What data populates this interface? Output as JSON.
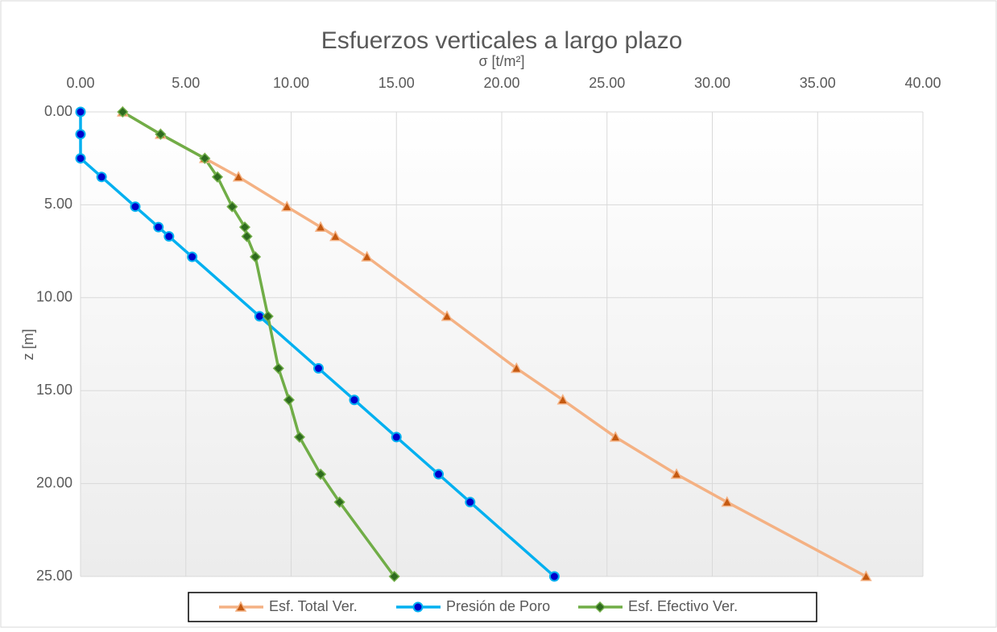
{
  "chart_data": {
    "type": "line",
    "title": "Esfuerzos verticales a largo plazo",
    "x_label": "σ [t/m²]",
    "y_label": "z [m]",
    "x_axis_position": "top",
    "y_inverted": true,
    "grid": true,
    "legend": "bottom",
    "xlim": [
      0,
      40
    ],
    "ylim": [
      0,
      25
    ],
    "xticks": [
      {
        "value": 0,
        "label": "0.00"
      },
      {
        "value": 5,
        "label": "5.00"
      },
      {
        "value": 10,
        "label": "10.00"
      },
      {
        "value": 15,
        "label": "15.00"
      },
      {
        "value": 20,
        "label": "20.00"
      },
      {
        "value": 25,
        "label": "25.00"
      },
      {
        "value": 30,
        "label": "30.00"
      },
      {
        "value": 35,
        "label": "35.00"
      },
      {
        "value": 40,
        "label": "40.00"
      }
    ],
    "yticks": [
      {
        "value": 0,
        "label": "0.00"
      },
      {
        "value": 5,
        "label": "5.00"
      },
      {
        "value": 10,
        "label": "10.00"
      },
      {
        "value": 15,
        "label": "15.00"
      },
      {
        "value": 20,
        "label": "20.00"
      },
      {
        "value": 25,
        "label": "25.00"
      }
    ],
    "series": [
      {
        "name": "Esf. Total Ver.",
        "color": "#f4b183",
        "marker_color": "#c55a11",
        "marker": "triangle",
        "x": [
          2.0,
          3.8,
          5.9,
          7.5,
          9.8,
          11.4,
          12.1,
          13.6,
          17.4,
          20.7,
          22.9,
          25.4,
          28.3,
          30.7,
          37.3
        ],
        "values": [
          0,
          1.2,
          2.5,
          3.5,
          5.1,
          6.2,
          6.7,
          7.8,
          11,
          13.8,
          15.5,
          17.5,
          19.5,
          21,
          25
        ]
      },
      {
        "name": "Presión de Poro",
        "color": "#00b0f0",
        "marker_color": "#0000cc",
        "marker": "circle",
        "x": [
          0,
          0,
          0,
          1.0,
          2.6,
          3.7,
          4.2,
          5.3,
          8.5,
          11.3,
          13.0,
          15.0,
          17.0,
          18.5,
          22.5
        ],
        "values": [
          0,
          1.2,
          2.5,
          3.5,
          5.1,
          6.2,
          6.7,
          7.8,
          11,
          13.8,
          15.5,
          17.5,
          19.5,
          21,
          25
        ]
      },
      {
        "name": "Esf. Efectivo Ver.",
        "color": "#70ad47",
        "marker_color": "#2e6b1f",
        "marker": "diamond",
        "x": [
          2.0,
          3.8,
          5.9,
          6.5,
          7.2,
          7.8,
          7.9,
          8.3,
          8.9,
          9.4,
          9.9,
          10.4,
          11.4,
          12.3,
          14.9
        ],
        "values": [
          0,
          1.2,
          2.5,
          3.5,
          5.1,
          6.2,
          6.7,
          7.8,
          11,
          13.8,
          15.5,
          17.5,
          19.5,
          21,
          25
        ]
      }
    ]
  }
}
